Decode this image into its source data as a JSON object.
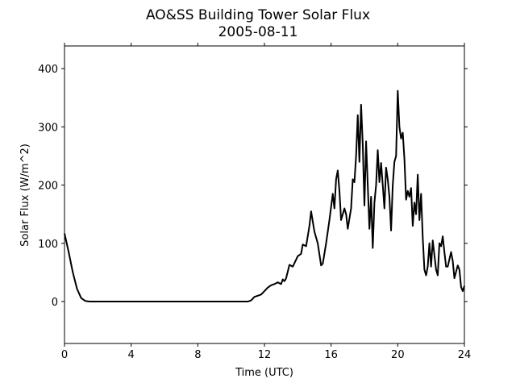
{
  "chart_data": {
    "type": "line",
    "title": "AO&SS Building Tower Solar Flux",
    "subtitle": "2005-08-11",
    "x_label": "Time (UTC)",
    "y_label": "Solar Flux (W/m^2)",
    "xlim": [
      0,
      24
    ],
    "ylim": [
      -72,
      439
    ],
    "xticks": [
      0,
      4,
      8,
      12,
      16,
      20,
      24
    ],
    "yticks": [
      0,
      100,
      200,
      300,
      400
    ],
    "series": [
      {
        "name": "Solar Flux",
        "color": "#000000",
        "x": [
          0,
          0.25,
          0.5,
          0.75,
          1.0,
          1.25,
          1.5,
          2,
          4,
          6,
          8,
          10,
          11,
          11.2,
          11.4,
          11.6,
          11.8,
          12.0,
          12.2,
          12.4,
          12.6,
          12.8,
          13.0,
          13.1,
          13.2,
          13.3,
          13.5,
          13.7,
          13.9,
          14.0,
          14.2,
          14.3,
          14.5,
          14.7,
          14.8,
          15.0,
          15.2,
          15.4,
          15.5,
          15.7,
          15.9,
          16.1,
          16.2,
          16.3,
          16.4,
          16.5,
          16.6,
          16.7,
          16.8,
          16.9,
          17.0,
          17.2,
          17.3,
          17.4,
          17.5,
          17.6,
          17.7,
          17.8,
          17.9,
          18.0,
          18.1,
          18.2,
          18.3,
          18.4,
          18.5,
          18.6,
          18.7,
          18.8,
          18.9,
          19.0,
          19.1,
          19.2,
          19.3,
          19.4,
          19.5,
          19.6,
          19.7,
          19.8,
          19.9,
          20.0,
          20.1,
          20.2,
          20.3,
          20.4,
          20.5,
          20.6,
          20.7,
          20.8,
          20.9,
          21.0,
          21.1,
          21.2,
          21.3,
          21.4,
          21.5,
          21.6,
          21.7,
          21.8,
          21.9,
          22.0,
          22.1,
          22.2,
          22.3,
          22.4,
          22.5,
          22.6,
          22.7,
          22.8,
          22.9,
          23.0,
          23.2,
          23.3,
          23.4,
          23.6,
          23.7,
          23.8,
          23.9,
          24.0
        ],
        "values": [
          117,
          85,
          50,
          22,
          6,
          1,
          0,
          0,
          0,
          0,
          0,
          0,
          0,
          2,
          8,
          10,
          12,
          18,
          24,
          28,
          30,
          33,
          30,
          38,
          35,
          40,
          63,
          60,
          72,
          78,
          82,
          98,
          95,
          130,
          155,
          120,
          100,
          62,
          65,
          100,
          140,
          185,
          160,
          210,
          225,
          190,
          140,
          150,
          160,
          150,
          125,
          160,
          210,
          205,
          250,
          320,
          240,
          338,
          270,
          165,
          275,
          200,
          125,
          180,
          92,
          170,
          200,
          260,
          205,
          238,
          200,
          160,
          230,
          210,
          180,
          122,
          200,
          240,
          250,
          362,
          300,
          280,
          290,
          245,
          175,
          190,
          180,
          195,
          130,
          170,
          150,
          218,
          140,
          185,
          110,
          55,
          45,
          60,
          100,
          60,
          105,
          80,
          55,
          45,
          100,
          95,
          112,
          85,
          60,
          60,
          85,
          70,
          40,
          62,
          55,
          25,
          18,
          27
        ]
      }
    ]
  }
}
